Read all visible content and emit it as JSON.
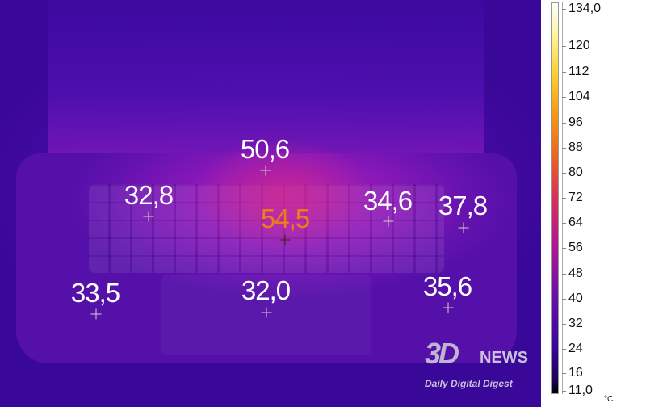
{
  "measurements": [
    {
      "value": "50,6",
      "hot": false
    },
    {
      "value": "32,8",
      "hot": false
    },
    {
      "value": "54,5",
      "hot": true
    },
    {
      "value": "34,6",
      "hot": false
    },
    {
      "value": "37,8",
      "hot": false
    },
    {
      "value": "33,5",
      "hot": false
    },
    {
      "value": "32,0",
      "hot": false
    },
    {
      "value": "35,6",
      "hot": false
    }
  ],
  "scale": {
    "max": "134,0",
    "min": "11,0",
    "unit": "°C",
    "ticks": [
      "120",
      "112",
      "104",
      "96",
      "88",
      "80",
      "72",
      "64",
      "56",
      "48",
      "40",
      "32",
      "24",
      "16"
    ],
    "palette": "iron"
  },
  "watermark": {
    "logo": "3DNEWS",
    "tagline": "Daily Digital Digest"
  }
}
